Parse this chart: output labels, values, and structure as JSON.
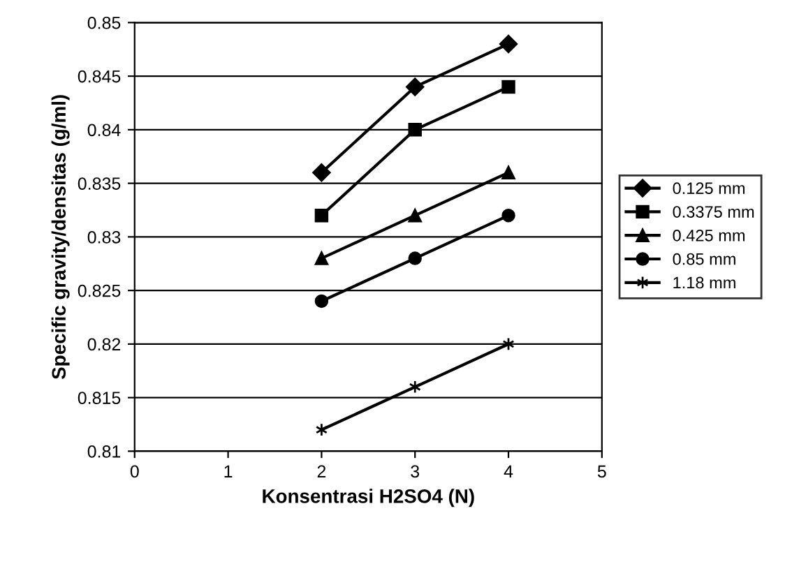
{
  "chart_data": {
    "type": "line",
    "xlabel": "Konsentrasi H2SO4 (N)",
    "ylabel": "Specific gravity/densitas (g/ml)",
    "x": [
      2,
      3,
      4
    ],
    "series": [
      {
        "name": "0.125 mm",
        "color": "#000000",
        "marker": "diamond",
        "values": [
          0.836,
          0.844,
          0.848
        ]
      },
      {
        "name": "0.3375 mm",
        "color": "#000000",
        "marker": "square",
        "values": [
          0.832,
          0.84,
          0.844
        ]
      },
      {
        "name": "0.425 mm",
        "color": "#000000",
        "marker": "triangle",
        "values": [
          0.828,
          0.832,
          0.836
        ]
      },
      {
        "name": "0.85 mm",
        "color": "#000000",
        "marker": "circle",
        "values": [
          0.824,
          0.828,
          0.832
        ]
      },
      {
        "name": "1.18 mm",
        "color": "#000000",
        "marker": "cross",
        "values": [
          0.812,
          0.816,
          0.82
        ]
      }
    ],
    "xlim": [
      0,
      5
    ],
    "xticks": [
      0,
      1,
      2,
      3,
      4,
      5
    ],
    "ylim": [
      0.81,
      0.85
    ],
    "yticks": [
      0.81,
      0.815,
      0.82,
      0.825,
      0.83,
      0.835,
      0.84,
      0.845,
      0.85
    ],
    "grid": "y",
    "legend": "right",
    "line_style": "solid"
  }
}
